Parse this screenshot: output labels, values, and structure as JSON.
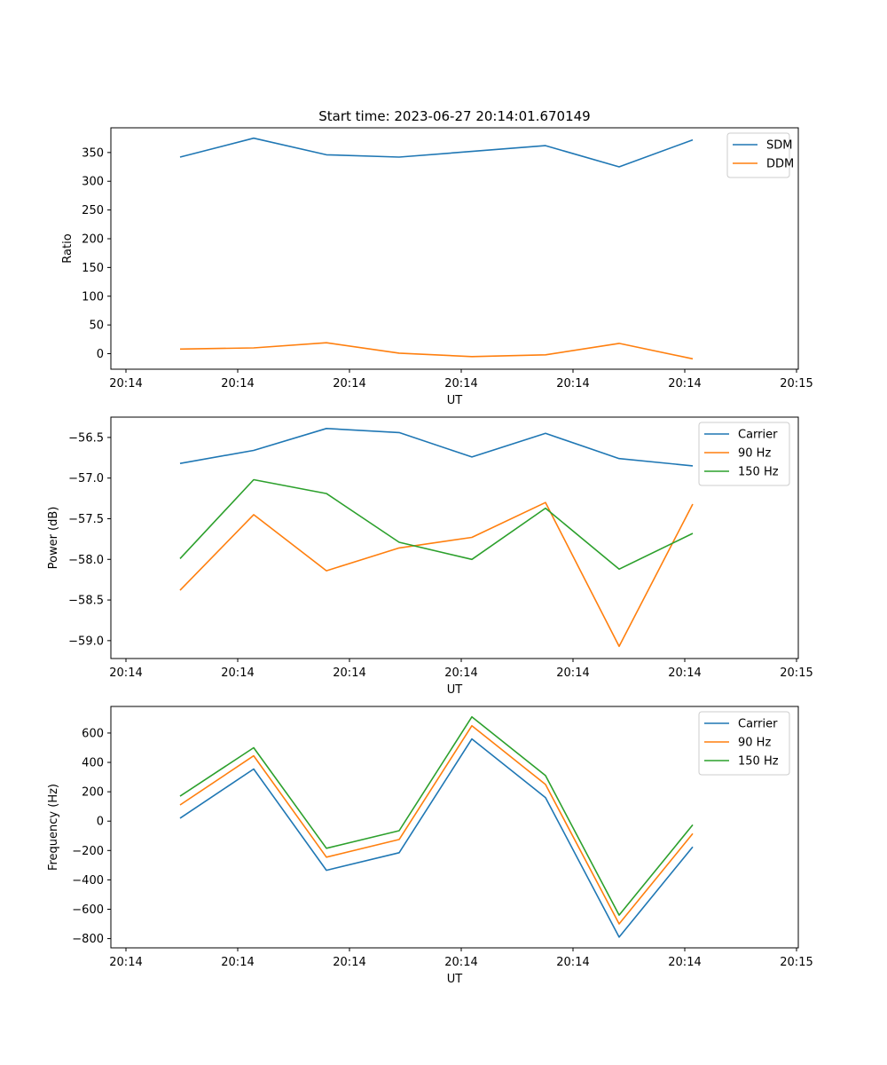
{
  "figure": {
    "title": "Start time: 2023-06-27 20:14:01.670149"
  },
  "chart_data": [
    {
      "type": "line",
      "xlabel": "UT",
      "ylabel": "Ratio",
      "x_tick_labels": [
        "20:14",
        "20:14",
        "20:14",
        "20:14",
        "20:14",
        "20:14",
        "20:15"
      ],
      "y_ticks": [
        0,
        50,
        100,
        150,
        200,
        250,
        300,
        350
      ],
      "ylim": [
        -27,
        393
      ],
      "legend_position": "upper right",
      "grid": false,
      "series": [
        {
          "name": "SDM",
          "color": "#1f77b4",
          "values": [
            342,
            375,
            346,
            342,
            352,
            362,
            325,
            372
          ]
        },
        {
          "name": "DDM",
          "color": "#ff7f0e",
          "values": [
            8,
            10,
            19,
            1,
            -5,
            -2,
            18,
            -9
          ]
        }
      ]
    },
    {
      "type": "line",
      "xlabel": "UT",
      "ylabel": "Power (dB)",
      "x_tick_labels": [
        "20:14",
        "20:14",
        "20:14",
        "20:14",
        "20:14",
        "20:14",
        "20:15"
      ],
      "y_ticks": [
        -59.0,
        -58.5,
        -58.0,
        -57.5,
        -57.0,
        -56.5
      ],
      "ylim": [
        -59.22,
        -56.25
      ],
      "legend_position": "upper right",
      "grid": false,
      "series": [
        {
          "name": "Carrier",
          "color": "#1f77b4",
          "values": [
            -56.82,
            -56.66,
            -56.39,
            -56.44,
            -56.74,
            -56.45,
            -56.76,
            -56.85
          ]
        },
        {
          "name": "90 Hz",
          "color": "#ff7f0e",
          "values": [
            -58.38,
            -57.45,
            -58.14,
            -57.86,
            -57.73,
            -57.3,
            -59.07,
            -57.32
          ]
        },
        {
          "name": "150 Hz",
          "color": "#2ca02c",
          "values": [
            -57.99,
            -57.02,
            -57.19,
            -57.79,
            -58.0,
            -57.37,
            -58.12,
            -57.68
          ]
        }
      ]
    },
    {
      "type": "line",
      "xlabel": "UT",
      "ylabel": "Frequency (Hz)",
      "x_tick_labels": [
        "20:14",
        "20:14",
        "20:14",
        "20:14",
        "20:14",
        "20:14",
        "20:15"
      ],
      "y_ticks": [
        -800,
        -600,
        -400,
        -200,
        0,
        200,
        400,
        600
      ],
      "ylim": [
        -863,
        781
      ],
      "legend_position": "upper right",
      "grid": false,
      "series": [
        {
          "name": "Carrier",
          "color": "#1f77b4",
          "values": [
            20,
            355,
            -335,
            -215,
            560,
            160,
            -790,
            -175
          ]
        },
        {
          "name": "90 Hz",
          "color": "#ff7f0e",
          "values": [
            110,
            445,
            -245,
            -125,
            650,
            250,
            -700,
            -85
          ]
        },
        {
          "name": "150 Hz",
          "color": "#2ca02c",
          "values": [
            170,
            500,
            -185,
            -65,
            710,
            310,
            -640,
            -25
          ]
        }
      ]
    }
  ]
}
